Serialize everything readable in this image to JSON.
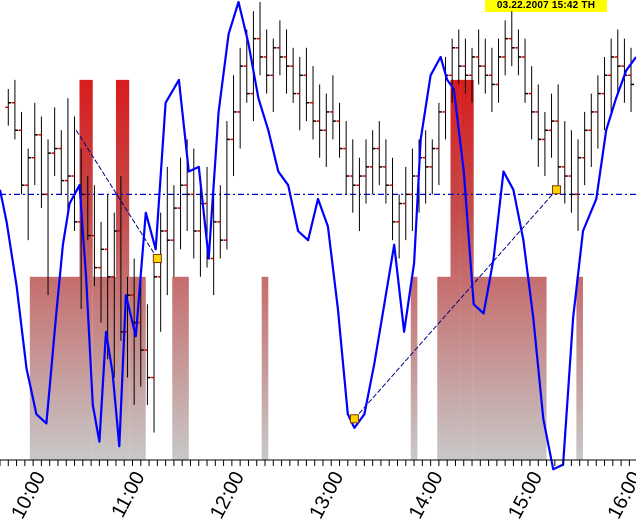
{
  "header": {
    "timestamp": "03.22.2007  15:42 TH"
  },
  "colors": {
    "price_line": "#0000ff",
    "reference_line": "#0000cc",
    "bar_top": "#e60000",
    "bar_bottom": "#c8c8c8",
    "ohlc": "#000000",
    "open_tick": "#cc0000",
    "marker_fill": "#ffd200"
  },
  "chart_data": {
    "type": "line",
    "x_range": [
      "09:36",
      "16:00"
    ],
    "y_range": [
      0,
      100
    ],
    "xticks": [
      "10:00",
      "11:00",
      "12:00",
      "13:00",
      "14:00",
      "15:00",
      "16:00"
    ],
    "reference_level": 58,
    "series": [
      {
        "x": [
          "09:36",
          "09:40",
          "09:46",
          "09:52",
          "09:58",
          "10:04",
          "10:10",
          "10:14",
          "10:18",
          "10:24",
          "10:28",
          "10:32",
          "10:36",
          "10:40",
          "10:44",
          "10:48",
          "10:52",
          "10:58",
          "11:04",
          "11:10",
          "11:16",
          "11:24",
          "11:30",
          "11:36",
          "11:42",
          "11:48",
          "11:54",
          "12:00",
          "12:06",
          "12:12",
          "12:18",
          "12:24",
          "12:30",
          "12:36",
          "12:42",
          "12:48",
          "12:54",
          "13:00",
          "13:06",
          "13:10",
          "13:16",
          "13:22",
          "13:28",
          "13:34",
          "13:40",
          "13:46",
          "13:50",
          "13:56",
          "14:02",
          "14:06",
          "14:10",
          "14:16",
          "14:22",
          "14:28",
          "14:34",
          "14:40",
          "14:46",
          "14:52",
          "14:58",
          "15:04",
          "15:10",
          "15:16",
          "15:22",
          "15:28",
          "15:36",
          "15:42",
          "15:48",
          "15:54",
          "16:00"
        ],
        "values": [
          59,
          52,
          38,
          20,
          10,
          8,
          32,
          47,
          56,
          60,
          40,
          12,
          4,
          28,
          19,
          3,
          36,
          27,
          54,
          46,
          78,
          83,
          63,
          64,
          44,
          76,
          93,
          100,
          91,
          79,
          72,
          63,
          60,
          50,
          48,
          57,
          51,
          33,
          10,
          7,
          10,
          21,
          34,
          47,
          28,
          43,
          70,
          84,
          88,
          83,
          81,
          63,
          34,
          32,
          44,
          63,
          59,
          48,
          31,
          9,
          -2,
          -1,
          31,
          50,
          57,
          72,
          79,
          85,
          88
        ]
      }
    ],
    "bars": [
      {
        "from": "09:54",
        "to": "10:24",
        "level": 40
      },
      {
        "from": "10:24",
        "to": "10:32",
        "level": 83
      },
      {
        "from": "10:32",
        "to": "10:46",
        "level": 40
      },
      {
        "from": "10:46",
        "to": "10:54",
        "level": 83
      },
      {
        "from": "10:54",
        "to": "11:04",
        "level": 40
      },
      {
        "from": "11:20",
        "to": "11:30",
        "level": 40
      },
      {
        "from": "12:14",
        "to": "12:18",
        "level": 40
      },
      {
        "from": "13:44",
        "to": "13:48",
        "level": 40
      },
      {
        "from": "14:08",
        "to": "14:14",
        "level": 83
      },
      {
        "from": "14:14",
        "to": "14:22",
        "level": 83
      },
      {
        "from": "14:00",
        "to": "14:08",
        "level": 40
      },
      {
        "from": "14:22",
        "to": "15:06",
        "level": 40
      },
      {
        "from": "15:24",
        "to": "15:28",
        "level": 40
      }
    ],
    "trendlines": [
      {
        "from": [
          "10:22",
          72
        ],
        "to": [
          "11:11",
          44
        ]
      },
      {
        "from": [
          "13:10",
          9
        ],
        "to": [
          "15:12",
          59
        ]
      }
    ],
    "markers": [
      {
        "x": "11:11",
        "y": 44
      },
      {
        "x": "13:10",
        "y": 9
      },
      {
        "x": "15:12",
        "y": 59
      }
    ],
    "ohlc": [
      [
        "09:41",
        77,
        81,
        73,
        78
      ],
      [
        "09:45",
        78,
        83,
        70,
        72
      ],
      [
        "09:49",
        72,
        76,
        58,
        60
      ],
      [
        "09:53",
        60,
        68,
        48,
        66
      ],
      [
        "09:57",
        66,
        78,
        60,
        71
      ],
      [
        "10:01",
        71,
        75,
        55,
        58
      ],
      [
        "10:05",
        58,
        70,
        36,
        67
      ],
      [
        "10:09",
        67,
        77,
        62,
        68
      ],
      [
        "10:13",
        68,
        72,
        58,
        61
      ],
      [
        "10:17",
        61,
        79,
        54,
        62
      ],
      [
        "10:21",
        62,
        75,
        50,
        52
      ],
      [
        "10:25",
        52,
        68,
        33,
        58
      ],
      [
        "10:29",
        58,
        62,
        48,
        49
      ],
      [
        "10:33",
        49,
        60,
        38,
        42
      ],
      [
        "10:37",
        42,
        52,
        30,
        46
      ],
      [
        "10:41",
        46,
        58,
        22,
        40
      ],
      [
        "10:45",
        40,
        54,
        18,
        50
      ],
      [
        "10:49",
        50,
        62,
        26,
        28
      ],
      [
        "10:53",
        28,
        40,
        18,
        36
      ],
      [
        "10:57",
        36,
        44,
        12,
        30
      ],
      [
        "11:01",
        30,
        42,
        16,
        24
      ],
      [
        "11:05",
        24,
        34,
        12,
        18
      ],
      [
        "11:09",
        18,
        44,
        6,
        40
      ],
      [
        "11:13",
        40,
        54,
        28,
        50
      ],
      [
        "11:17",
        50,
        64,
        36,
        48
      ],
      [
        "11:21",
        48,
        60,
        40,
        55
      ],
      [
        "11:25",
        55,
        66,
        46,
        60
      ],
      [
        "11:29",
        60,
        70,
        50,
        58
      ],
      [
        "11:33",
        58,
        68,
        44,
        50
      ],
      [
        "11:37",
        50,
        62,
        40,
        56
      ],
      [
        "11:41",
        56,
        64,
        42,
        44
      ],
      [
        "11:45",
        44,
        58,
        36,
        52
      ],
      [
        "11:49",
        52,
        60,
        44,
        48
      ],
      [
        "11:53",
        48,
        74,
        46,
        70
      ],
      [
        "11:57",
        70,
        84,
        62,
        76
      ],
      [
        "12:01",
        76,
        90,
        68,
        86
      ],
      [
        "12:05",
        86,
        94,
        78,
        80
      ],
      [
        "12:09",
        80,
        98,
        74,
        92
      ],
      [
        "12:13",
        92,
        100,
        84,
        88
      ],
      [
        "12:17",
        88,
        94,
        80,
        84
      ],
      [
        "12:21",
        84,
        92,
        76,
        90
      ],
      [
        "12:25",
        90,
        96,
        84,
        88
      ],
      [
        "12:29",
        88,
        94,
        80,
        86
      ],
      [
        "12:33",
        86,
        90,
        78,
        80
      ],
      [
        "12:37",
        80,
        88,
        72,
        84
      ],
      [
        "12:41",
        84,
        90,
        74,
        78
      ],
      [
        "12:45",
        78,
        86,
        70,
        74
      ],
      [
        "12:49",
        74,
        82,
        66,
        72
      ],
      [
        "12:53",
        72,
        80,
        64,
        76
      ],
      [
        "12:57",
        76,
        84,
        70,
        74
      ],
      [
        "13:01",
        74,
        78,
        66,
        68
      ],
      [
        "13:05",
        68,
        74,
        58,
        62
      ],
      [
        "13:09",
        62,
        70,
        54,
        60
      ],
      [
        "13:13",
        60,
        66,
        50,
        62
      ],
      [
        "13:17",
        62,
        70,
        56,
        64
      ],
      [
        "13:21",
        64,
        72,
        58,
        68
      ],
      [
        "13:25",
        68,
        74,
        60,
        64
      ],
      [
        "13:29",
        64,
        70,
        56,
        60
      ],
      [
        "13:33",
        60,
        66,
        48,
        52
      ],
      [
        "13:37",
        52,
        58,
        44,
        56
      ],
      [
        "13:41",
        56,
        64,
        48,
        58
      ],
      [
        "13:45",
        58,
        68,
        50,
        62
      ],
      [
        "13:49",
        62,
        70,
        54,
        66
      ],
      [
        "13:53",
        66,
        72,
        56,
        64
      ],
      [
        "13:57",
        64,
        70,
        58,
        68
      ],
      [
        "14:01",
        68,
        78,
        60,
        76
      ],
      [
        "14:05",
        76,
        88,
        70,
        84
      ],
      [
        "14:09",
        84,
        92,
        78,
        90
      ],
      [
        "14:13",
        90,
        94,
        82,
        86
      ],
      [
        "14:17",
        86,
        92,
        80,
        84
      ],
      [
        "14:21",
        84,
        90,
        78,
        88
      ],
      [
        "14:25",
        88,
        94,
        82,
        86
      ],
      [
        "14:29",
        86,
        92,
        80,
        84
      ],
      [
        "14:33",
        84,
        90,
        76,
        82
      ],
      [
        "14:37",
        82,
        92,
        78,
        88
      ],
      [
        "14:41",
        88,
        96,
        84,
        92
      ],
      [
        "14:45",
        92,
        98,
        86,
        90
      ],
      [
        "14:49",
        90,
        94,
        84,
        88
      ],
      [
        "14:53",
        88,
        92,
        78,
        80
      ],
      [
        "14:57",
        80,
        86,
        70,
        76
      ],
      [
        "15:01",
        76,
        82,
        64,
        70
      ],
      [
        "15:05",
        70,
        76,
        62,
        72
      ],
      [
        "15:09",
        72,
        80,
        66,
        74
      ],
      [
        "15:13",
        74,
        82,
        60,
        64
      ],
      [
        "15:17",
        64,
        74,
        56,
        62
      ],
      [
        "15:21",
        62,
        72,
        54,
        58
      ],
      [
        "15:25",
        58,
        70,
        50,
        66
      ],
      [
        "15:29",
        66,
        76,
        60,
        72
      ],
      [
        "15:33",
        72,
        80,
        64,
        76
      ],
      [
        "15:37",
        76,
        84,
        68,
        80
      ],
      [
        "15:41",
        80,
        88,
        72,
        84
      ],
      [
        "15:45",
        84,
        92,
        76,
        88
      ],
      [
        "15:49",
        88,
        94,
        80,
        86
      ],
      [
        "15:53",
        86,
        92,
        78,
        84
      ],
      [
        "15:57",
        84,
        90,
        76,
        82
      ]
    ]
  }
}
